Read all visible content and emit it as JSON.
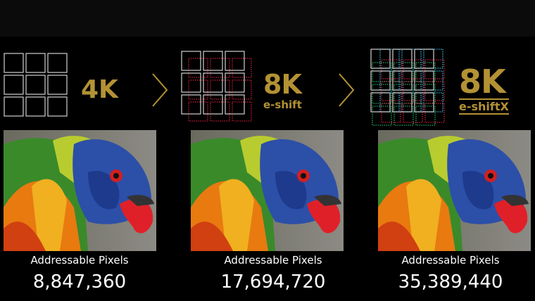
{
  "panels": [
    {
      "logo_main": "4K",
      "logo_sub": "",
      "label": "Addressable Pixels",
      "pixels": "8,847,360"
    },
    {
      "logo_main": "8K",
      "logo_sub": "e-shift",
      "label": "Addressable Pixels",
      "pixels": "17,694,720"
    },
    {
      "logo_main": "8K",
      "logo_sub": "e-shiftX",
      "label": "Addressable Pixels",
      "pixels": "35,389,440"
    }
  ],
  "colors": {
    "gold": "#b39234",
    "grid_white": "#d0d0d0",
    "grid_red": "#c8203c",
    "grid_green": "#20b060",
    "grid_cyan": "#30b8e0"
  }
}
